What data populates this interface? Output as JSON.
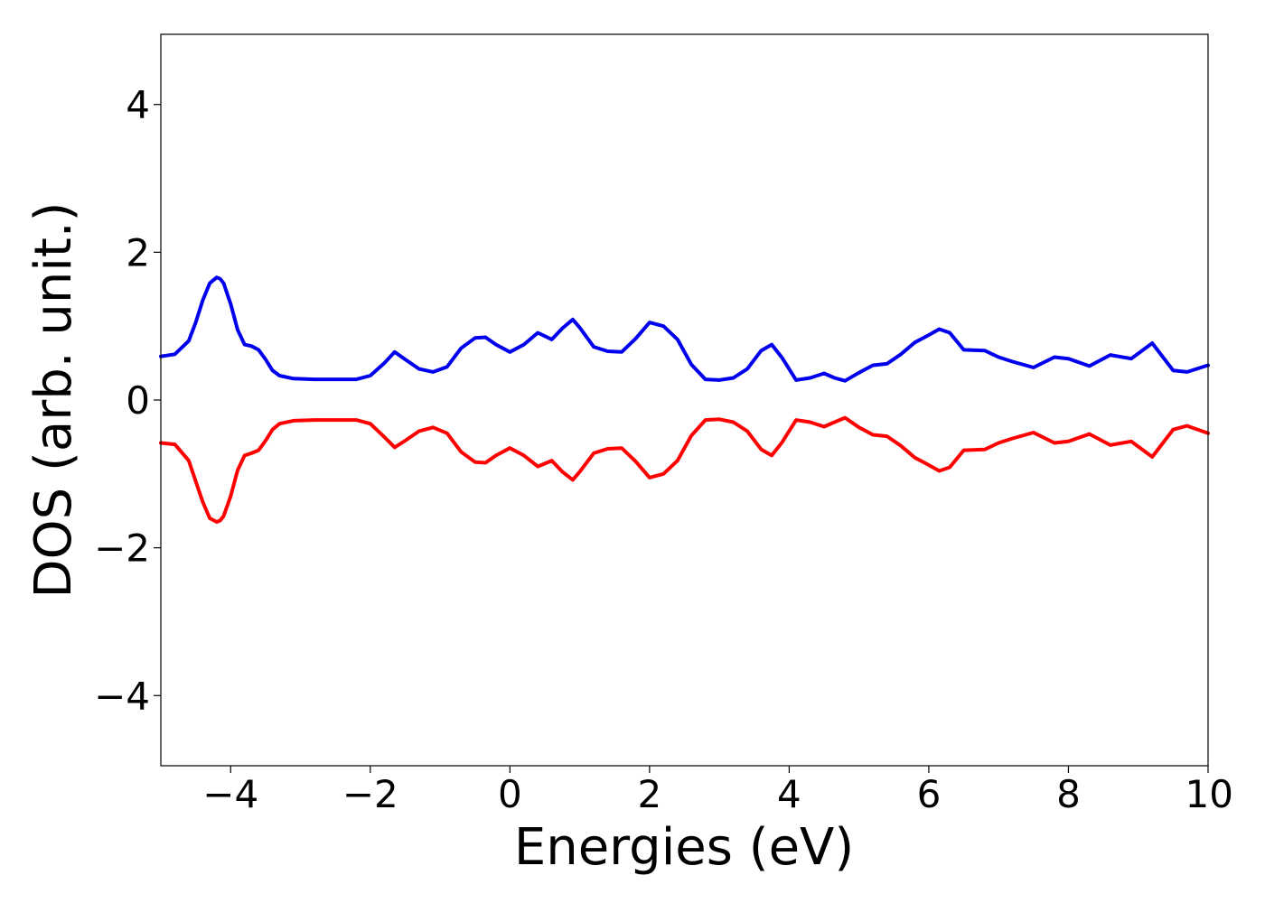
{
  "chart_data": {
    "type": "line",
    "title": "",
    "xlabel": "Energies (eV)",
    "ylabel": "DOS (arb. unit.)",
    "xlim": [
      -5,
      10
    ],
    "ylim": [
      -4.95,
      4.95
    ],
    "grid": false,
    "legend": "none",
    "x_ticks": [
      -4,
      -2,
      0,
      2,
      4,
      6,
      8,
      10
    ],
    "x_tick_labels": [
      "−4",
      "−2",
      "0",
      "2",
      "4",
      "6",
      "8",
      "10"
    ],
    "y_ticks": [
      -4,
      -2,
      0,
      2,
      4
    ],
    "y_tick_labels": [
      "−4",
      "−2",
      "0",
      "2",
      "4"
    ],
    "x": [
      -5.0,
      -4.8,
      -4.6,
      -4.5,
      -4.4,
      -4.3,
      -4.2,
      -4.15,
      -4.1,
      -4.0,
      -3.9,
      -3.8,
      -3.7,
      -3.6,
      -3.5,
      -3.4,
      -3.3,
      -3.1,
      -2.8,
      -2.5,
      -2.2,
      -2.0,
      -1.8,
      -1.65,
      -1.5,
      -1.3,
      -1.1,
      -0.9,
      -0.7,
      -0.5,
      -0.35,
      -0.2,
      0.0,
      0.2,
      0.4,
      0.6,
      0.75,
      0.9,
      1.0,
      1.2,
      1.4,
      1.6,
      1.8,
      2.0,
      2.2,
      2.4,
      2.6,
      2.8,
      3.0,
      3.2,
      3.4,
      3.6,
      3.75,
      3.9,
      4.1,
      4.3,
      4.5,
      4.65,
      4.8,
      5.0,
      5.2,
      5.4,
      5.6,
      5.8,
      6.0,
      6.15,
      6.3,
      6.5,
      6.8,
      7.0,
      7.2,
      7.5,
      7.8,
      8.0,
      8.3,
      8.6,
      8.9,
      9.2,
      9.5,
      9.7,
      10.0
    ],
    "series": [
      {
        "color": "#0000ee",
        "y": [
          0.59,
          0.62,
          0.8,
          1.05,
          1.35,
          1.58,
          1.66,
          1.64,
          1.58,
          1.3,
          0.95,
          0.75,
          0.73,
          0.68,
          0.55,
          0.4,
          0.33,
          0.29,
          0.28,
          0.28,
          0.28,
          0.33,
          0.5,
          0.65,
          0.55,
          0.42,
          0.38,
          0.45,
          0.7,
          0.84,
          0.85,
          0.75,
          0.65,
          0.75,
          0.91,
          0.82,
          0.97,
          1.09,
          0.98,
          0.72,
          0.66,
          0.65,
          0.83,
          1.05,
          1.0,
          0.82,
          0.48,
          0.28,
          0.27,
          0.3,
          0.42,
          0.67,
          0.75,
          0.57,
          0.27,
          0.3,
          0.36,
          0.3,
          0.26,
          0.37,
          0.47,
          0.49,
          0.62,
          0.78,
          0.88,
          0.96,
          0.91,
          0.68,
          0.67,
          0.58,
          0.52,
          0.44,
          0.58,
          0.56,
          0.46,
          0.61,
          0.56,
          0.77,
          0.4,
          0.38,
          0.47
        ]
      },
      {
        "color": "#ff0000",
        "y": [
          -0.58,
          -0.6,
          -0.82,
          -1.1,
          -1.38,
          -1.6,
          -1.65,
          -1.63,
          -1.57,
          -1.3,
          -0.95,
          -0.75,
          -0.72,
          -0.68,
          -0.55,
          -0.4,
          -0.32,
          -0.28,
          -0.27,
          -0.27,
          -0.27,
          -0.32,
          -0.5,
          -0.64,
          -0.55,
          -0.42,
          -0.37,
          -0.45,
          -0.7,
          -0.84,
          -0.85,
          -0.75,
          -0.65,
          -0.75,
          -0.9,
          -0.82,
          -0.97,
          -1.08,
          -0.97,
          -0.72,
          -0.66,
          -0.65,
          -0.83,
          -1.05,
          -1.0,
          -0.82,
          -0.48,
          -0.27,
          -0.26,
          -0.3,
          -0.42,
          -0.67,
          -0.75,
          -0.57,
          -0.27,
          -0.3,
          -0.36,
          -0.3,
          -0.24,
          -0.37,
          -0.47,
          -0.49,
          -0.62,
          -0.78,
          -0.88,
          -0.96,
          -0.91,
          -0.68,
          -0.67,
          -0.58,
          -0.52,
          -0.44,
          -0.58,
          -0.56,
          -0.46,
          -0.61,
          -0.56,
          -0.77,
          -0.4,
          -0.35,
          -0.45
        ]
      }
    ]
  }
}
